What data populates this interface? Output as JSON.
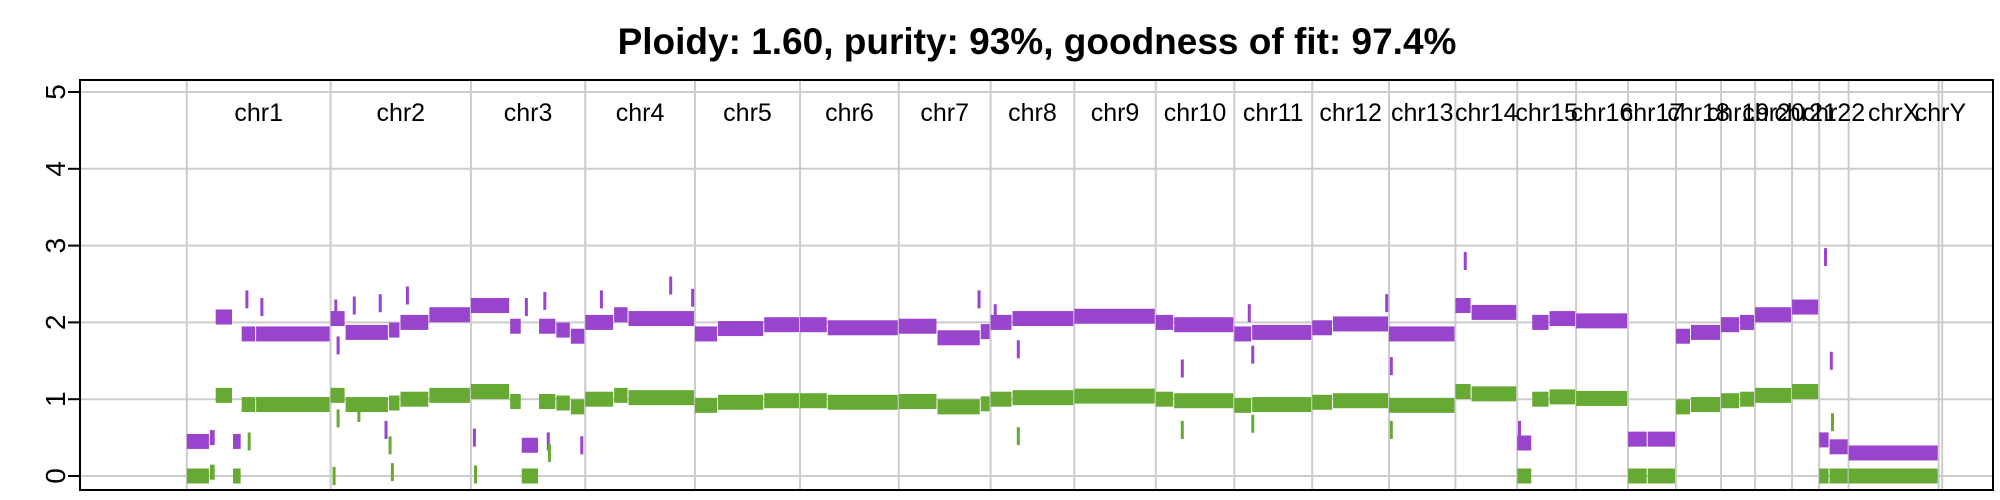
{
  "chart_data": {
    "type": "scatter",
    "title": "Ploidy: 1.60, purity: 93%, goodness of fit: 97.4%",
    "xlabel": "",
    "ylabel": "",
    "ylim": [
      0,
      5
    ],
    "yticks": [
      0,
      1,
      2,
      3,
      4,
      5
    ],
    "grid": true,
    "legend": "none",
    "colors": {
      "major": "#9944CC",
      "minor": "#66AA33",
      "grid": "#CCCCCC",
      "axis": "#000000"
    },
    "chromosomes": [
      {
        "name": "chr1",
        "start": 0,
        "end": 249
      },
      {
        "name": "chr2",
        "start": 249,
        "end": 492
      },
      {
        "name": "chr3",
        "start": 492,
        "end": 690
      },
      {
        "name": "chr4",
        "start": 690,
        "end": 880
      },
      {
        "name": "chr5",
        "start": 880,
        "end": 1062
      },
      {
        "name": "chr6",
        "start": 1062,
        "end": 1233
      },
      {
        "name": "chr7",
        "start": 1233,
        "end": 1392
      },
      {
        "name": "chr8",
        "start": 1392,
        "end": 1537
      },
      {
        "name": "chr9",
        "start": 1537,
        "end": 1678
      },
      {
        "name": "chr10",
        "start": 1678,
        "end": 1814
      },
      {
        "name": "chr11",
        "start": 1814,
        "end": 1949
      },
      {
        "name": "chr12",
        "start": 1949,
        "end": 2082
      },
      {
        "name": "chr13",
        "start": 2082,
        "end": 2197
      },
      {
        "name": "chr14",
        "start": 2197,
        "end": 2304
      },
      {
        "name": "chr15",
        "start": 2304,
        "end": 2406
      },
      {
        "name": "chr16",
        "start": 2406,
        "end": 2496
      },
      {
        "name": "chr17",
        "start": 2496,
        "end": 2579
      },
      {
        "name": "chr18",
        "start": 2579,
        "end": 2657
      },
      {
        "name": "chr19",
        "start": 2657,
        "end": 2716
      },
      {
        "name": "chr20",
        "start": 2716,
        "end": 2780
      },
      {
        "name": "chr21",
        "start": 2780,
        "end": 2827
      },
      {
        "name": "chr22",
        "start": 2827,
        "end": 2878
      },
      {
        "name": "chrX",
        "start": 2878,
        "end": 3034
      },
      {
        "name": "chrY",
        "start": 3034,
        "end": 3040
      }
    ],
    "xlim": [
      -185,
      3128
    ],
    "series": [
      {
        "key": "major",
        "segments": [
          {
            "x0": 0,
            "x1": 40,
            "y": 0.45
          },
          {
            "x0": 40,
            "x1": 50,
            "y": 0.5
          },
          {
            "x0": 50,
            "x1": 80,
            "y": 2.07
          },
          {
            "x0": 80,
            "x1": 95,
            "y": 0.45
          },
          {
            "x0": 95,
            "x1": 120,
            "y": 1.85
          },
          {
            "x0": 120,
            "x1": 249,
            "y": 1.85
          },
          {
            "x0": 249,
            "x1": 275,
            "y": 2.05
          },
          {
            "x0": 275,
            "x1": 350,
            "y": 1.87
          },
          {
            "x0": 350,
            "x1": 370,
            "y": 1.9
          },
          {
            "x0": 370,
            "x1": 420,
            "y": 2.0
          },
          {
            "x0": 420,
            "x1": 492,
            "y": 2.1
          },
          {
            "x0": 492,
            "x1": 560,
            "y": 2.22
          },
          {
            "x0": 560,
            "x1": 580,
            "y": 1.95
          },
          {
            "x0": 580,
            "x1": 610,
            "y": 0.4
          },
          {
            "x0": 610,
            "x1": 640,
            "y": 1.95
          },
          {
            "x0": 640,
            "x1": 665,
            "y": 1.9
          },
          {
            "x0": 665,
            "x1": 690,
            "y": 1.82
          },
          {
            "x0": 690,
            "x1": 740,
            "y": 2.0
          },
          {
            "x0": 740,
            "x1": 765,
            "y": 2.1
          },
          {
            "x0": 765,
            "x1": 880,
            "y": 2.05
          },
          {
            "x0": 880,
            "x1": 920,
            "y": 1.85
          },
          {
            "x0": 920,
            "x1": 1000,
            "y": 1.92
          },
          {
            "x0": 1000,
            "x1": 1062,
            "y": 1.97
          },
          {
            "x0": 1062,
            "x1": 1110,
            "y": 1.97
          },
          {
            "x0": 1110,
            "x1": 1233,
            "y": 1.93
          },
          {
            "x0": 1233,
            "x1": 1300,
            "y": 1.95
          },
          {
            "x0": 1300,
            "x1": 1375,
            "y": 1.8
          },
          {
            "x0": 1375,
            "x1": 1392,
            "y": 1.88
          },
          {
            "x0": 1392,
            "x1": 1430,
            "y": 2.0
          },
          {
            "x0": 1430,
            "x1": 1537,
            "y": 2.05
          },
          {
            "x0": 1537,
            "x1": 1678,
            "y": 2.08
          },
          {
            "x0": 1678,
            "x1": 1710,
            "y": 2.0
          },
          {
            "x0": 1710,
            "x1": 1814,
            "y": 1.97
          },
          {
            "x0": 1814,
            "x1": 1845,
            "y": 1.85
          },
          {
            "x0": 1845,
            "x1": 1949,
            "y": 1.87
          },
          {
            "x0": 1949,
            "x1": 1985,
            "y": 1.93
          },
          {
            "x0": 1985,
            "x1": 2082,
            "y": 1.98
          },
          {
            "x0": 2082,
            "x1": 2197,
            "y": 1.85
          },
          {
            "x0": 2197,
            "x1": 2225,
            "y": 2.22
          },
          {
            "x0": 2225,
            "x1": 2304,
            "y": 2.13
          },
          {
            "x0": 2304,
            "x1": 2330,
            "y": 0.43
          },
          {
            "x0": 2330,
            "x1": 2360,
            "y": 2.0
          },
          {
            "x0": 2360,
            "x1": 2406,
            "y": 2.05
          },
          {
            "x0": 2406,
            "x1": 2496,
            "y": 2.02
          },
          {
            "x0": 2496,
            "x1": 2530,
            "y": 0.48
          },
          {
            "x0": 2530,
            "x1": 2579,
            "y": 0.48
          },
          {
            "x0": 2579,
            "x1": 2605,
            "y": 1.82
          },
          {
            "x0": 2605,
            "x1": 2657,
            "y": 1.87
          },
          {
            "x0": 2657,
            "x1": 2690,
            "y": 1.97
          },
          {
            "x0": 2690,
            "x1": 2716,
            "y": 2.0
          },
          {
            "x0": 2716,
            "x1": 2780,
            "y": 2.1
          },
          {
            "x0": 2780,
            "x1": 2827,
            "y": 2.2
          },
          {
            "x0": 2827,
            "x1": 2845,
            "y": 0.47
          },
          {
            "x0": 2845,
            "x1": 2878,
            "y": 0.38
          },
          {
            "x0": 2878,
            "x1": 3034,
            "y": 0.3
          }
        ]
      },
      {
        "key": "minor",
        "segments": [
          {
            "x0": 0,
            "x1": 40,
            "y": 0.0
          },
          {
            "x0": 40,
            "x1": 50,
            "y": 0.05
          },
          {
            "x0": 50,
            "x1": 80,
            "y": 1.05
          },
          {
            "x0": 80,
            "x1": 95,
            "y": 0.0
          },
          {
            "x0": 95,
            "x1": 120,
            "y": 0.93
          },
          {
            "x0": 120,
            "x1": 249,
            "y": 0.93
          },
          {
            "x0": 249,
            "x1": 275,
            "y": 1.05
          },
          {
            "x0": 275,
            "x1": 350,
            "y": 0.93
          },
          {
            "x0": 350,
            "x1": 370,
            "y": 0.95
          },
          {
            "x0": 370,
            "x1": 420,
            "y": 1.0
          },
          {
            "x0": 420,
            "x1": 492,
            "y": 1.05
          },
          {
            "x0": 492,
            "x1": 560,
            "y": 1.1
          },
          {
            "x0": 560,
            "x1": 580,
            "y": 0.97
          },
          {
            "x0": 580,
            "x1": 610,
            "y": 0.0
          },
          {
            "x0": 610,
            "x1": 640,
            "y": 0.97
          },
          {
            "x0": 640,
            "x1": 665,
            "y": 0.95
          },
          {
            "x0": 665,
            "x1": 690,
            "y": 0.9
          },
          {
            "x0": 690,
            "x1": 740,
            "y": 1.0
          },
          {
            "x0": 740,
            "x1": 765,
            "y": 1.05
          },
          {
            "x0": 765,
            "x1": 880,
            "y": 1.02
          },
          {
            "x0": 880,
            "x1": 920,
            "y": 0.92
          },
          {
            "x0": 920,
            "x1": 1000,
            "y": 0.96
          },
          {
            "x0": 1000,
            "x1": 1062,
            "y": 0.98
          },
          {
            "x0": 1062,
            "x1": 1110,
            "y": 0.98
          },
          {
            "x0": 1110,
            "x1": 1233,
            "y": 0.96
          },
          {
            "x0": 1233,
            "x1": 1300,
            "y": 0.97
          },
          {
            "x0": 1300,
            "x1": 1375,
            "y": 0.9
          },
          {
            "x0": 1375,
            "x1": 1392,
            "y": 0.94
          },
          {
            "x0": 1392,
            "x1": 1430,
            "y": 1.0
          },
          {
            "x0": 1430,
            "x1": 1537,
            "y": 1.02
          },
          {
            "x0": 1537,
            "x1": 1678,
            "y": 1.04
          },
          {
            "x0": 1678,
            "x1": 1710,
            "y": 1.0
          },
          {
            "x0": 1710,
            "x1": 1814,
            "y": 0.98
          },
          {
            "x0": 1814,
            "x1": 1845,
            "y": 0.92
          },
          {
            "x0": 1845,
            "x1": 1949,
            "y": 0.93
          },
          {
            "x0": 1949,
            "x1": 1985,
            "y": 0.96
          },
          {
            "x0": 1985,
            "x1": 2082,
            "y": 0.98
          },
          {
            "x0": 2082,
            "x1": 2197,
            "y": 0.92
          },
          {
            "x0": 2197,
            "x1": 2225,
            "y": 1.1
          },
          {
            "x0": 2225,
            "x1": 2304,
            "y": 1.07
          },
          {
            "x0": 2304,
            "x1": 2330,
            "y": 0.0
          },
          {
            "x0": 2330,
            "x1": 2360,
            "y": 1.0
          },
          {
            "x0": 2360,
            "x1": 2406,
            "y": 1.03
          },
          {
            "x0": 2406,
            "x1": 2496,
            "y": 1.01
          },
          {
            "x0": 2496,
            "x1": 2530,
            "y": 0.0
          },
          {
            "x0": 2530,
            "x1": 2579,
            "y": 0.0
          },
          {
            "x0": 2579,
            "x1": 2605,
            "y": 0.9
          },
          {
            "x0": 2605,
            "x1": 2657,
            "y": 0.93
          },
          {
            "x0": 2657,
            "x1": 2690,
            "y": 0.98
          },
          {
            "x0": 2690,
            "x1": 2716,
            "y": 1.0
          },
          {
            "x0": 2716,
            "x1": 2780,
            "y": 1.05
          },
          {
            "x0": 2780,
            "x1": 2827,
            "y": 1.1
          },
          {
            "x0": 2827,
            "x1": 2845,
            "y": 0.0
          },
          {
            "x0": 2845,
            "x1": 2878,
            "y": 0.0
          },
          {
            "x0": 2878,
            "x1": 3034,
            "y": 0.0
          }
        ]
      }
    ],
    "outliers": [
      {
        "key": "major",
        "x": 104,
        "y": 2.3
      },
      {
        "key": "major",
        "x": 130,
        "y": 2.2
      },
      {
        "key": "major",
        "x": 258,
        "y": 2.18
      },
      {
        "key": "major",
        "x": 262,
        "y": 1.7
      },
      {
        "key": "major",
        "x": 290,
        "y": 2.22
      },
      {
        "key": "major",
        "x": 335,
        "y": 2.25
      },
      {
        "key": "major",
        "x": 345,
        "y": 0.6
      },
      {
        "key": "major",
        "x": 382,
        "y": 2.35
      },
      {
        "key": "major",
        "x": 498,
        "y": 0.5
      },
      {
        "key": "major",
        "x": 588,
        "y": 2.2
      },
      {
        "key": "major",
        "x": 620,
        "y": 2.28
      },
      {
        "key": "major",
        "x": 626,
        "y": 0.45
      },
      {
        "key": "major",
        "x": 684,
        "y": 0.4
      },
      {
        "key": "major",
        "x": 718,
        "y": 2.3
      },
      {
        "key": "major",
        "x": 838,
        "y": 2.48
      },
      {
        "key": "major",
        "x": 876,
        "y": 2.32
      },
      {
        "key": "major",
        "x": 1372,
        "y": 2.3
      },
      {
        "key": "major",
        "x": 1400,
        "y": 2.12
      },
      {
        "key": "major",
        "x": 1440,
        "y": 1.65
      },
      {
        "key": "major",
        "x": 1724,
        "y": 1.4
      },
      {
        "key": "major",
        "x": 1840,
        "y": 2.12
      },
      {
        "key": "major",
        "x": 1846,
        "y": 1.58
      },
      {
        "key": "major",
        "x": 2078,
        "y": 2.25
      },
      {
        "key": "major",
        "x": 2086,
        "y": 1.43
      },
      {
        "key": "major",
        "x": 2214,
        "y": 2.8
      },
      {
        "key": "major",
        "x": 2308,
        "y": 0.6
      },
      {
        "key": "major",
        "x": 2838,
        "y": 2.85
      },
      {
        "key": "major",
        "x": 2848,
        "y": 1.5
      },
      {
        "key": "minor",
        "x": 108,
        "y": 0.45
      },
      {
        "key": "minor",
        "x": 255,
        "y": 0.0
      },
      {
        "key": "minor",
        "x": 262,
        "y": 0.75
      },
      {
        "key": "minor",
        "x": 298,
        "y": 0.82
      },
      {
        "key": "minor",
        "x": 352,
        "y": 0.4
      },
      {
        "key": "minor",
        "x": 356,
        "y": 0.05
      },
      {
        "key": "minor",
        "x": 500,
        "y": 0.02
      },
      {
        "key": "minor",
        "x": 628,
        "y": 0.3
      },
      {
        "key": "minor",
        "x": 1440,
        "y": 0.52
      },
      {
        "key": "minor",
        "x": 1724,
        "y": 0.6
      },
      {
        "key": "minor",
        "x": 1846,
        "y": 0.68
      },
      {
        "key": "minor",
        "x": 2086,
        "y": 0.6
      },
      {
        "key": "minor",
        "x": 2850,
        "y": 0.7
      }
    ]
  }
}
